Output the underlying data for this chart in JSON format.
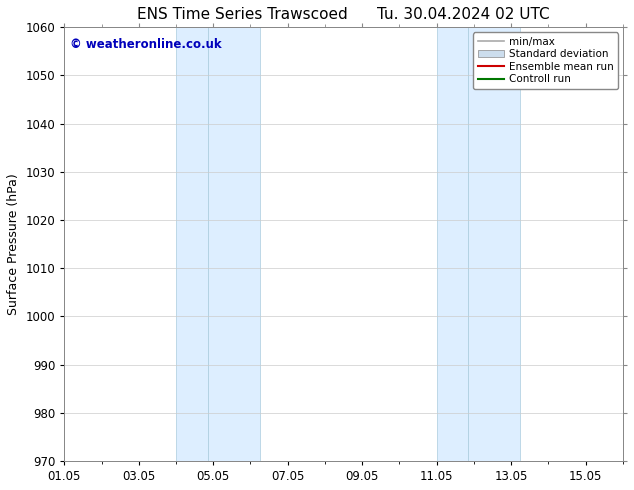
{
  "title_left": "ENS Time Series Trawscoed",
  "title_right": "Tu. 30.04.2024 02 UTC",
  "ylabel": "Surface Pressure (hPa)",
  "ylim": [
    970,
    1060
  ],
  "yticks": [
    970,
    980,
    990,
    1000,
    1010,
    1020,
    1030,
    1040,
    1050,
    1060
  ],
  "xlim": [
    0,
    15
  ],
  "xtick_labels": [
    "01.05",
    "03.05",
    "05.05",
    "07.05",
    "09.05",
    "11.05",
    "13.05",
    "15.05"
  ],
  "xtick_positions": [
    0,
    2,
    4,
    6,
    8,
    10,
    12,
    14
  ],
  "shaded_regions": [
    {
      "start": 3.0,
      "end": 3.8
    },
    {
      "start": 3.8,
      "end": 5.3
    },
    {
      "start": 10.0,
      "end": 10.8
    },
    {
      "start": 10.8,
      "end": 12.3
    }
  ],
  "shaded_colors": [
    "#ddeeff",
    "#ddeeff",
    "#ddeeff",
    "#ddeeff"
  ],
  "shaded_edge_colors": [
    "#aaccdd",
    "#aaccdd",
    "#aaccdd",
    "#aaccdd"
  ],
  "watermark_text": "© weatheronline.co.uk",
  "watermark_color": "#0000bb",
  "legend_entries": [
    {
      "label": "min/max",
      "color": "#aaaaaa",
      "lw": 1.2,
      "type": "line"
    },
    {
      "label": "Standard deviation",
      "color": "#ccdded",
      "lw": 6,
      "type": "patch"
    },
    {
      "label": "Ensemble mean run",
      "color": "#cc0000",
      "lw": 1.5,
      "type": "line"
    },
    {
      "label": "Controll run",
      "color": "#007700",
      "lw": 1.5,
      "type": "line"
    }
  ],
  "bg_color": "#ffffff",
  "grid_color": "#cccccc",
  "title_fontsize": 11,
  "label_fontsize": 9,
  "tick_fontsize": 8.5,
  "watermark_fontsize": 8.5
}
